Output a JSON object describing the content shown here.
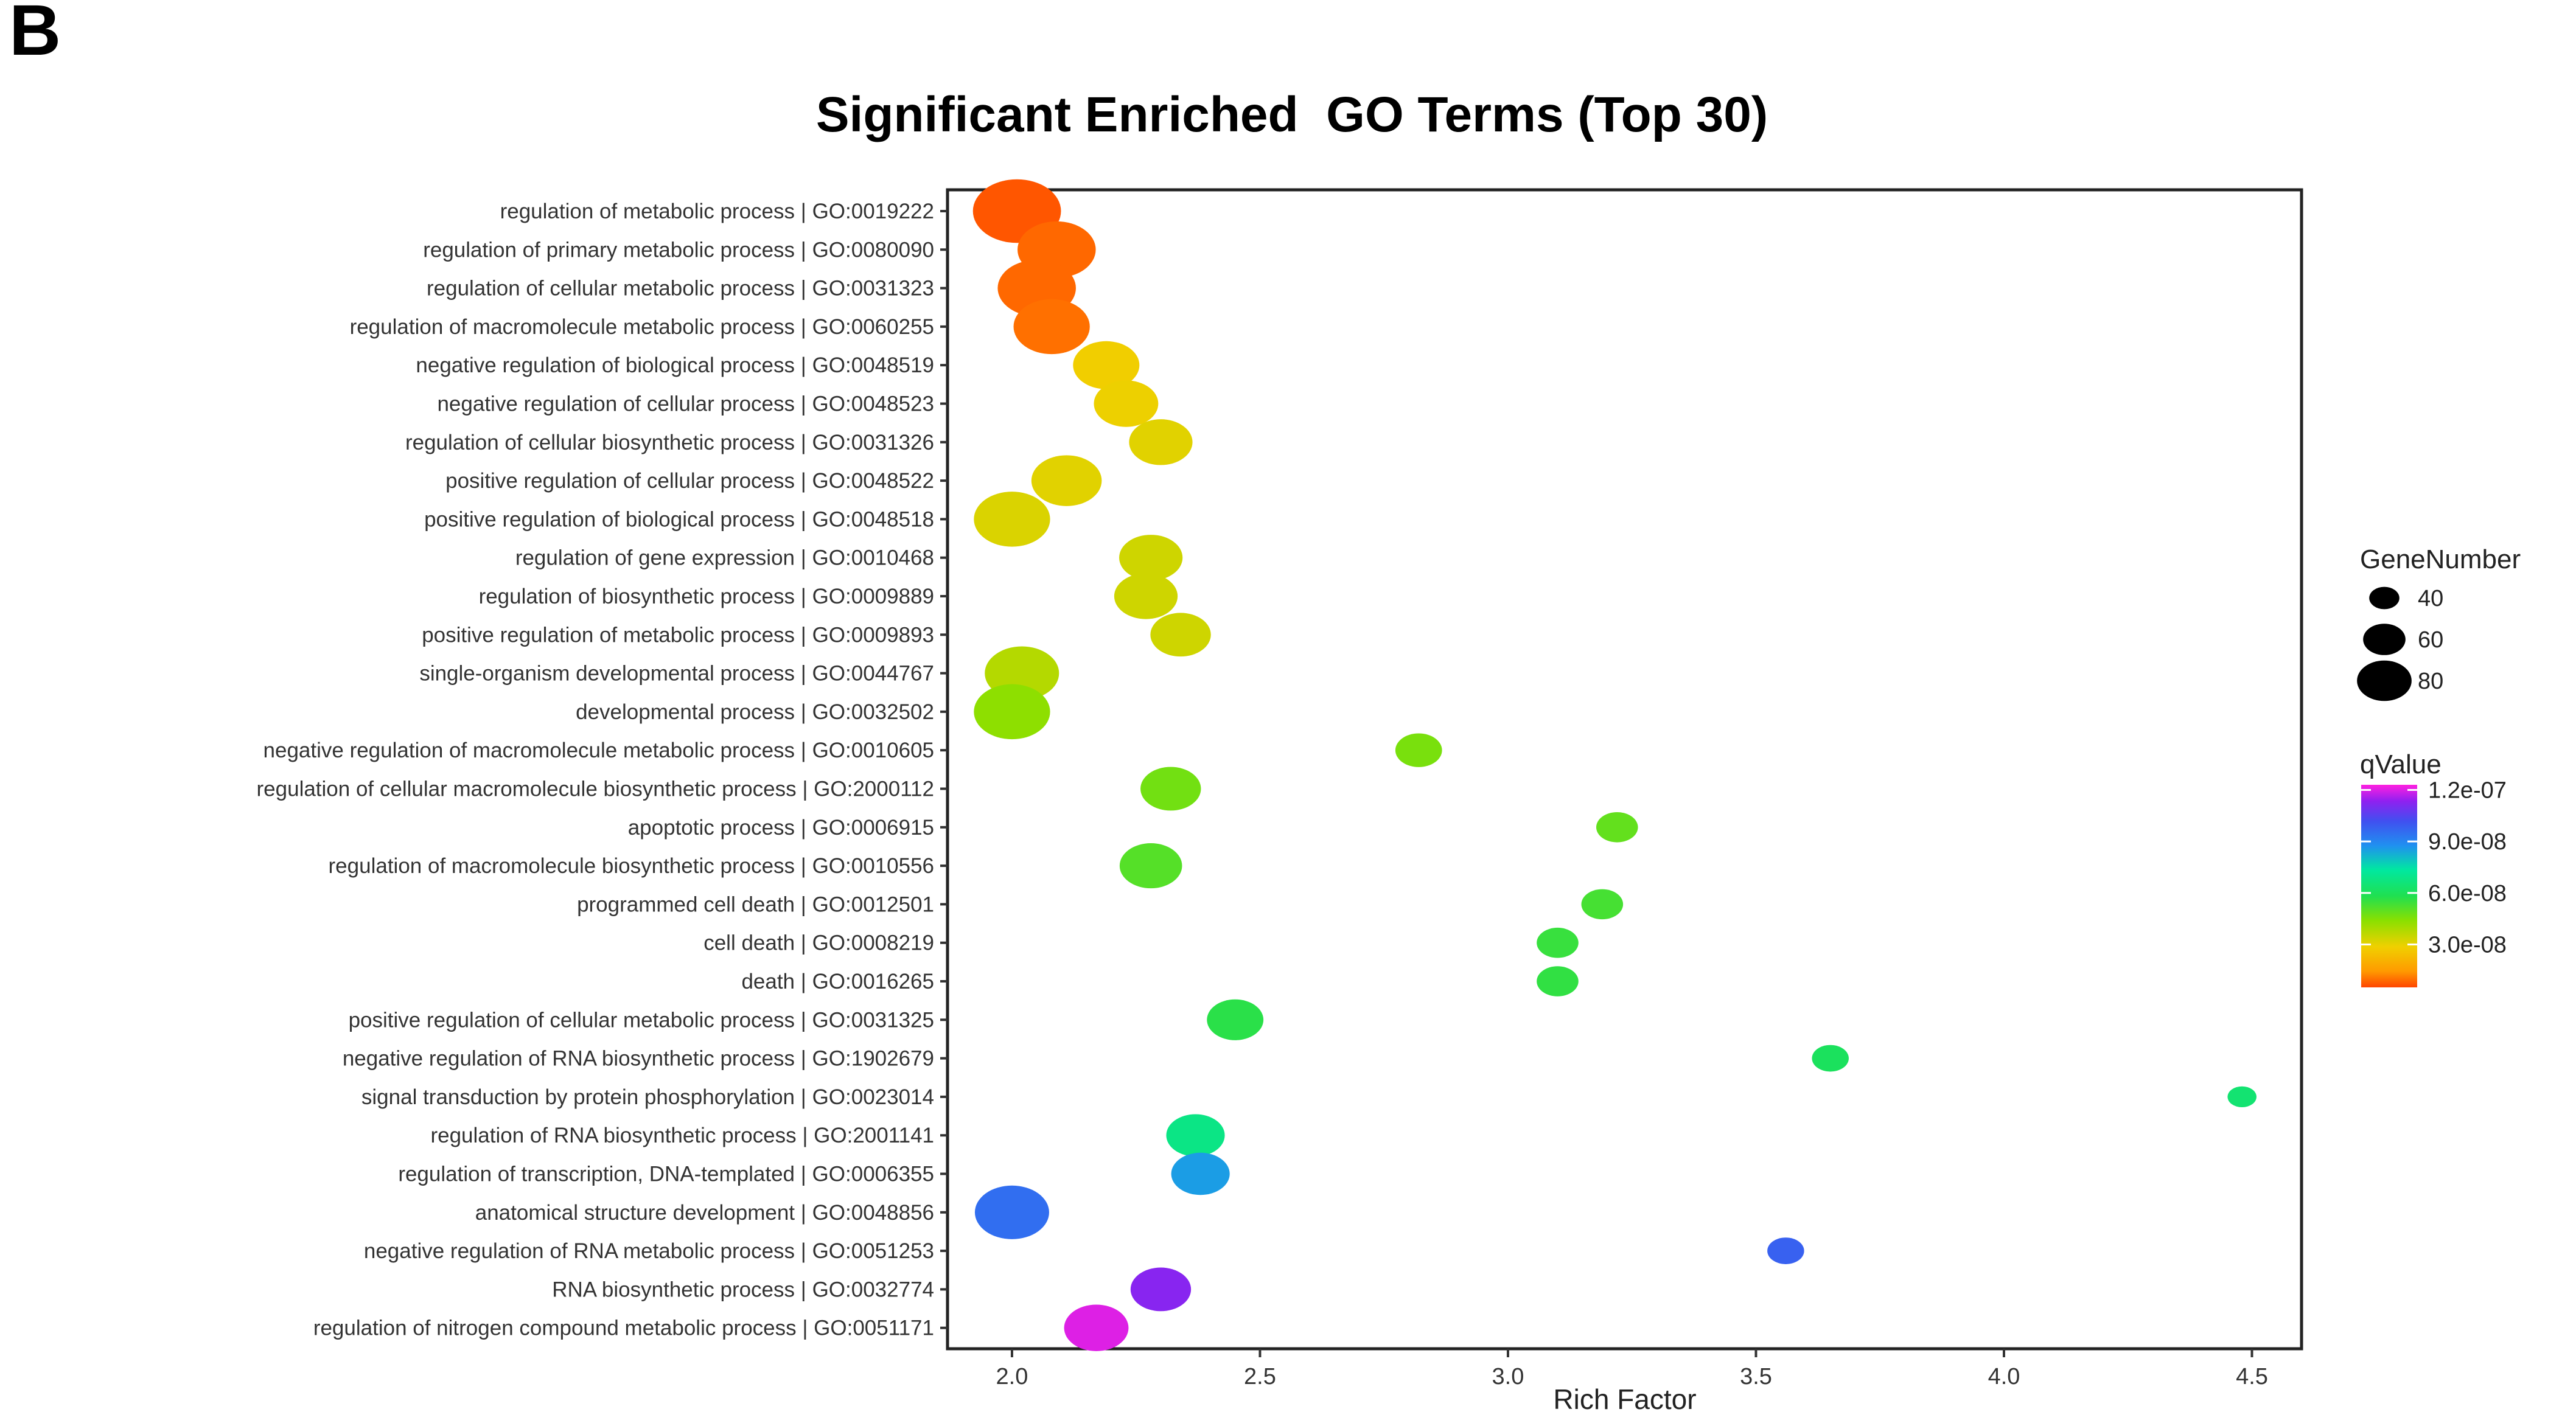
{
  "panel_label": "B",
  "chart_data": {
    "type": "scatter",
    "title": "Significant Enriched  GO Terms (Top 30)",
    "xlabel": "Rich Factor",
    "ylabel": "",
    "xlim": [
      1.87,
      4.6
    ],
    "x_ticks": [
      2.0,
      2.5,
      3.0,
      3.5,
      4.0,
      4.5
    ],
    "x_tick_labels": [
      "2.0",
      "2.5",
      "3.0",
      "3.5",
      "4.0",
      "4.5"
    ],
    "grid": false,
    "size_legend": {
      "title": "GeneNumber",
      "entries": [
        {
          "label": "40",
          "value": 40
        },
        {
          "label": "60",
          "value": 60
        },
        {
          "label": "80",
          "value": 80
        }
      ]
    },
    "color_legend": {
      "title": "qValue",
      "placement": "right",
      "ticks": [
        {
          "label": "1.2e-07",
          "value": 1.2e-07
        },
        {
          "label": "9.0e-08",
          "value": 9e-08
        },
        {
          "label": "6.0e-08",
          "value": 6e-08
        },
        {
          "label": "3.0e-08",
          "value": 3e-08
        }
      ],
      "vmin": 5e-09,
      "vmax": 1.23e-07
    },
    "points": [
      {
        "term": "regulation of metabolic process | GO:0019222",
        "x": 2.01,
        "gene_number": 80,
        "qvalue": 2e-09
      },
      {
        "term": "regulation of primary metabolic process | GO:0080090",
        "x": 2.09,
        "gene_number": 70,
        "qvalue": 4e-09
      },
      {
        "term": "regulation of cellular metabolic process | GO:0031323",
        "x": 2.05,
        "gene_number": 70,
        "qvalue": 4e-09
      },
      {
        "term": "regulation of macromolecule metabolic process | GO:0060255",
        "x": 2.08,
        "gene_number": 68,
        "qvalue": 5e-09
      },
      {
        "term": "negative regulation of biological process | GO:0048519",
        "x": 2.19,
        "gene_number": 58,
        "qvalue": 2.4e-08
      },
      {
        "term": "negative regulation of cellular process | GO:0048523",
        "x": 2.23,
        "gene_number": 56,
        "qvalue": 2.5e-08
      },
      {
        "term": "regulation of cellular biosynthetic process | GO:0031326",
        "x": 2.3,
        "gene_number": 55,
        "qvalue": 2.7e-08
      },
      {
        "term": "positive regulation of cellular process | GO:0048522",
        "x": 2.11,
        "gene_number": 62,
        "qvalue": 2.7e-08
      },
      {
        "term": "positive regulation of biological process | GO:0048518",
        "x": 2.0,
        "gene_number": 68,
        "qvalue": 2.8e-08
      },
      {
        "term": "regulation of gene expression | GO:0010468",
        "x": 2.28,
        "gene_number": 55,
        "qvalue": 3e-08
      },
      {
        "term": "regulation of biosynthetic process | GO:0009889",
        "x": 2.27,
        "gene_number": 55,
        "qvalue": 3e-08
      },
      {
        "term": "positive regulation of metabolic process | GO:0009893",
        "x": 2.34,
        "gene_number": 52,
        "qvalue": 3e-08
      },
      {
        "term": "single-organism developmental process | GO:0044767",
        "x": 2.02,
        "gene_number": 66,
        "qvalue": 3.4e-08
      },
      {
        "term": "developmental process | GO:0032502",
        "x": 2.0,
        "gene_number": 68,
        "qvalue": 4e-08
      },
      {
        "term": "negative regulation of macromolecule metabolic process | GO:0010605",
        "x": 2.82,
        "gene_number": 38,
        "qvalue": 4.3e-08
      },
      {
        "term": "regulation of cellular macromolecule biosynthetic process | GO:2000112",
        "x": 2.32,
        "gene_number": 52,
        "qvalue": 4.4e-08
      },
      {
        "term": "apoptotic process | GO:0006915",
        "x": 3.22,
        "gene_number": 33,
        "qvalue": 4.6e-08
      },
      {
        "term": "regulation of macromolecule biosynthetic process | GO:0010556",
        "x": 2.28,
        "gene_number": 54,
        "qvalue": 4.8e-08
      },
      {
        "term": "programmed cell death | GO:0012501",
        "x": 3.19,
        "gene_number": 33,
        "qvalue": 5e-08
      },
      {
        "term": "cell death | GO:0008219",
        "x": 3.1,
        "gene_number": 33,
        "qvalue": 5.2e-08
      },
      {
        "term": "death | GO:0016265",
        "x": 3.1,
        "gene_number": 33,
        "qvalue": 5.3e-08
      },
      {
        "term": "positive regulation of cellular metabolic process | GO:0031325",
        "x": 2.45,
        "gene_number": 48,
        "qvalue": 5.4e-08
      },
      {
        "term": "negative regulation of RNA biosynthetic process | GO:1902679",
        "x": 3.65,
        "gene_number": 28,
        "qvalue": 5.8e-08
      },
      {
        "term": "signal transduction by protein phosphorylation | GO:0023014",
        "x": 4.48,
        "gene_number": 20,
        "qvalue": 6.2e-08
      },
      {
        "term": "regulation of RNA biosynthetic process | GO:2001141",
        "x": 2.37,
        "gene_number": 50,
        "qvalue": 6.6e-08
      },
      {
        "term": "regulation of transcription, DNA-templated | GO:0006355",
        "x": 2.38,
        "gene_number": 50,
        "qvalue": 8.4e-08
      },
      {
        "term": "anatomical structure development | GO:0048856",
        "x": 2.0,
        "gene_number": 66,
        "qvalue": 9.4e-08
      },
      {
        "term": "negative regulation of RNA metabolic process | GO:0051253",
        "x": 3.56,
        "gene_number": 28,
        "qvalue": 9.7e-08
      },
      {
        "term": "RNA biosynthetic process | GO:0032774",
        "x": 2.3,
        "gene_number": 52,
        "qvalue": 1.12e-07
      },
      {
        "term": "regulation of nitrogen compound metabolic process | GO:0051171",
        "x": 2.17,
        "gene_number": 56,
        "qvalue": 1.2e-07
      }
    ]
  }
}
